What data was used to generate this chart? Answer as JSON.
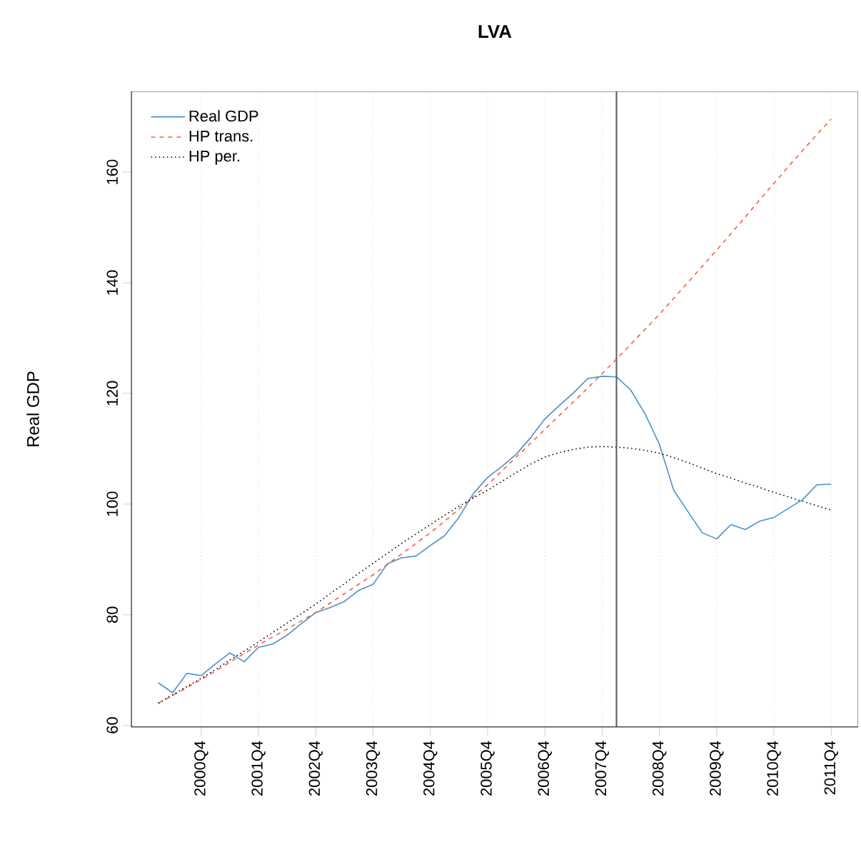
{
  "chart_data": {
    "type": "line",
    "title": "LVA",
    "ylabel": "Real GDP",
    "categories": [
      null,
      null,
      null,
      "2000Q4",
      null,
      null,
      null,
      "2001Q4",
      null,
      null,
      null,
      "2002Q4",
      null,
      null,
      null,
      "2003Q4",
      null,
      null,
      null,
      "2004Q4",
      null,
      null,
      null,
      "2005Q4",
      null,
      null,
      null,
      "2006Q4",
      null,
      null,
      null,
      "2007Q4",
      null,
      null,
      null,
      "2008Q4",
      null,
      null,
      null,
      "2009Q4",
      null,
      null,
      null,
      "2010Q4",
      null,
      null,
      null,
      "2011Q4"
    ],
    "ylim": [
      59.7,
      174.6
    ],
    "yticks": [
      60,
      80,
      100,
      120,
      140,
      160
    ],
    "grid": "x",
    "legend": "top left",
    "series": [
      {
        "name": "Real GDP",
        "color": "#4a8fd0",
        "line_style": "solid",
        "values": [
          67.7,
          65.9,
          69.4,
          69.0,
          71.1,
          73.1,
          71.5,
          74.1,
          74.7,
          76.3,
          78.4,
          80.4,
          81.3,
          82.4,
          84.4,
          85.5,
          89.2,
          90.3,
          90.6,
          92.5,
          94.3,
          97.6,
          101.9,
          104.8,
          106.8,
          109.0,
          112.0,
          115.4,
          117.8,
          120.1,
          122.7,
          123.1,
          123.0,
          120.6,
          116.3,
          110.8,
          102.5,
          98.6,
          94.8,
          93.7,
          96.3,
          95.4,
          96.9,
          97.6,
          99.2,
          100.8,
          103.5,
          103.6
        ]
      },
      {
        "name": "HP trans.",
        "color": "#f4603a",
        "line_style": "dashed",
        "values": [
          64.0,
          65.4,
          66.8,
          68.3,
          69.8,
          71.4,
          73.0,
          74.5,
          76.0,
          77.4,
          78.9,
          80.4,
          82.1,
          83.8,
          85.5,
          87.2,
          89.1,
          91.0,
          92.9,
          94.8,
          96.9,
          99.1,
          101.3,
          103.5,
          106.0,
          108.5,
          111.0,
          113.5,
          116.0,
          118.5,
          121.0,
          123.6,
          126.2,
          128.9,
          131.6,
          134.3,
          137.2,
          140.1,
          143.0,
          145.9,
          148.9,
          151.9,
          155.0,
          158.0,
          161.0,
          163.9,
          166.8,
          169.6
        ]
      },
      {
        "name": "HP per.",
        "color": "#000000",
        "line_style": "dotted",
        "values": [
          64.0,
          65.5,
          67.0,
          68.5,
          70.1,
          71.8,
          73.4,
          75.1,
          76.8,
          78.5,
          80.2,
          81.9,
          83.8,
          85.6,
          87.5,
          89.3,
          91.1,
          92.9,
          94.6,
          96.3,
          98.0,
          99.6,
          101.1,
          102.5,
          104.1,
          105.7,
          107.2,
          108.5,
          109.3,
          109.9,
          110.3,
          110.4,
          110.3,
          110.1,
          109.7,
          109.2,
          108.4,
          107.5,
          106.5,
          105.5,
          104.7,
          103.8,
          103.0,
          102.1,
          101.3,
          100.5,
          99.7,
          98.9
        ]
      }
    ]
  }
}
